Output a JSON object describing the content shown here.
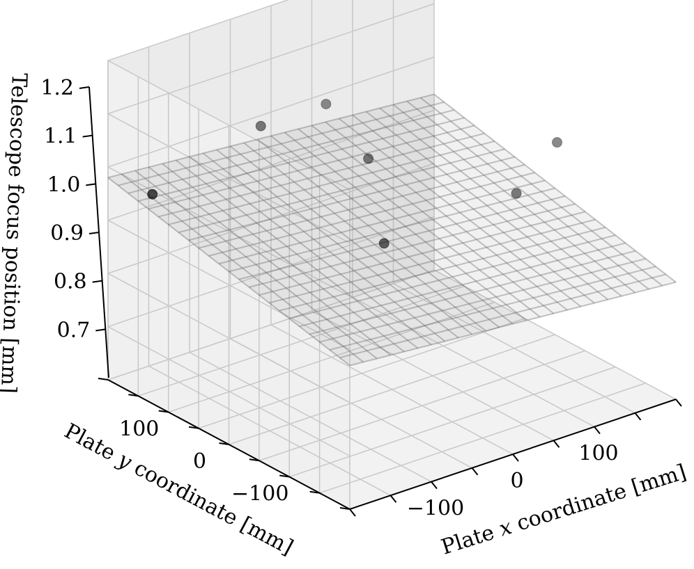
{
  "chart_data": {
    "type": "scatter",
    "projection": "3d",
    "grid": true,
    "title": "",
    "xlabel": "Plate x coordinate [mm]",
    "ylabel": "Plate y coordinate [mm]",
    "zlabel": "Telescope focus position [mm]",
    "xlabel_parts": [
      "Plate ",
      "x",
      " coordinate [mm]"
    ],
    "ylabel_parts": [
      "Plate ",
      "y",
      " coordinate [mm]"
    ],
    "x_ticks": [
      -100,
      0,
      100
    ],
    "x_tick_labels": [
      "−100",
      "0",
      "100"
    ],
    "y_ticks": [
      -100,
      0,
      100
    ],
    "y_tick_labels": [
      "−100",
      "0",
      "100"
    ],
    "z_ticks": [
      0.7,
      0.8,
      0.9,
      1.0,
      1.1,
      1.2
    ],
    "z_tick_labels": [
      "0.7",
      "0.8",
      "0.9",
      "1.0",
      "1.1",
      "1.2"
    ],
    "xlim": [
      -200,
      200
    ],
    "ylim": [
      -200,
      200
    ],
    "zlim": [
      0.6,
      1.2
    ],
    "points": [
      {
        "x": -20,
        "y": 190,
        "z": 0.99
      },
      {
        "x": 60,
        "y": 190,
        "z": 0.99
      },
      {
        "x": -190,
        "y": 140,
        "z": 0.98
      },
      {
        "x": 60,
        "y": 120,
        "z": 0.93
      },
      {
        "x": 210,
        "y": 10,
        "z": 0.95
      },
      {
        "x": 160,
        "y": 10,
        "z": 0.88
      },
      {
        "x": 20,
        "y": 40,
        "z": 0.84
      }
    ],
    "fitted_plane": {
      "type": "wireframe",
      "corners": [
        {
          "x": -200,
          "y": 200,
          "z": 0.98
        },
        {
          "x": -200,
          "y": -200,
          "z": 0.87
        },
        {
          "x": 200,
          "y": 200,
          "z": 0.93
        },
        {
          "x": 200,
          "y": -200,
          "z": 0.82
        }
      ]
    },
    "colors": {
      "points": "#000000",
      "plane": "#555555",
      "grid": "#c8c8c8",
      "pane": "#f2f2f2"
    }
  }
}
